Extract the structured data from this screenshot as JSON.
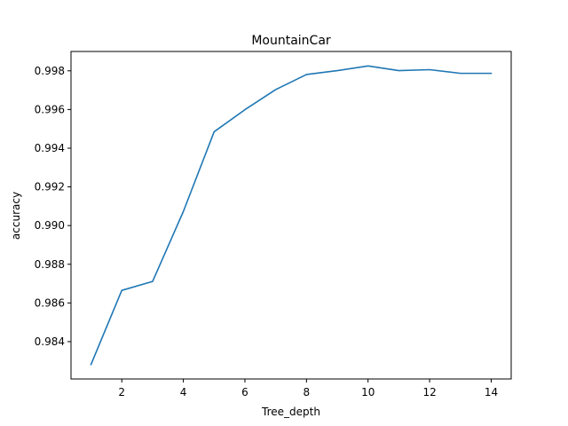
{
  "chart_data": {
    "type": "line",
    "title": "MountainCar",
    "xlabel": "Tree_depth",
    "ylabel": "accuracy",
    "x": [
      1,
      2,
      3,
      4,
      5,
      6,
      7,
      8,
      9,
      10,
      11,
      12,
      13,
      14
    ],
    "series": [
      {
        "values": [
          0.98282,
          0.98665,
          0.98711,
          0.99073,
          0.99485,
          0.99599,
          0.99703,
          0.99781,
          0.99801,
          0.99825,
          0.99801,
          0.99806,
          0.99787,
          0.99787
        ],
        "color": "#1f77b4"
      }
    ],
    "xlim": [
      0.35,
      14.65
    ],
    "ylim": [
      0.98207,
      0.999
    ],
    "xticks": [
      2,
      4,
      6,
      8,
      10,
      12,
      14
    ],
    "xtick_labels": [
      "2",
      "4",
      "6",
      "8",
      "10",
      "12",
      "14"
    ],
    "yticks": [
      0.984,
      0.986,
      0.988,
      0.99,
      0.992,
      0.994,
      0.996,
      0.998
    ],
    "ytick_labels": [
      "0.984",
      "0.986",
      "0.988",
      "0.990",
      "0.992",
      "0.994",
      "0.996",
      "0.998"
    ],
    "grid": false,
    "legend": "none"
  }
}
